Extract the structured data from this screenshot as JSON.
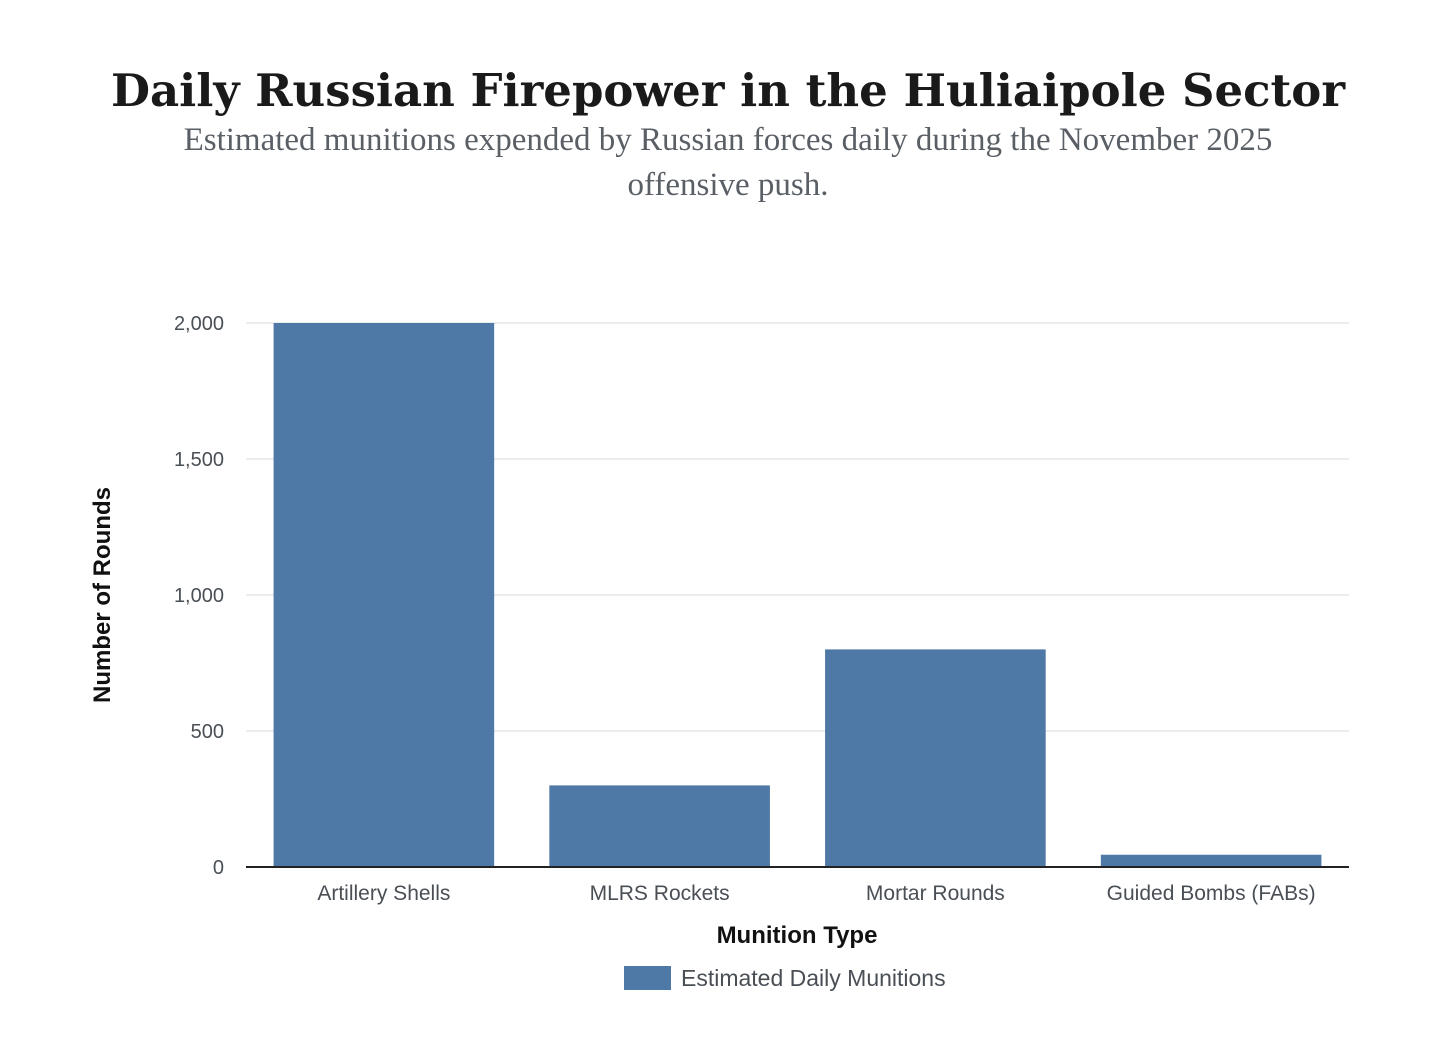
{
  "chart_data": {
    "type": "bar",
    "title": "Daily Russian Firepower in the Huliaipole Sector",
    "subtitle_lines": [
      "Estimated munitions expended by Russian forces daily during the November 2025",
      "offensive push."
    ],
    "categories": [
      "Artillery Shells",
      "MLRS Rockets",
      "Mortar Rounds",
      "Guided Bombs (FABs)"
    ],
    "series": [
      {
        "name": "Estimated Daily Munitions",
        "values": [
          2000,
          300,
          800,
          45
        ],
        "color": "#4e79a7"
      }
    ],
    "xlabel": "Munition Type",
    "ylabel": "Number of Rounds",
    "ylim": [
      0,
      2000
    ],
    "yticks": [
      0,
      500,
      1000,
      1500,
      2000
    ],
    "ytick_labels": [
      "0",
      "500",
      "1,000",
      "1,500",
      "2,000"
    ],
    "grid": true,
    "legend_position": "bottom-center"
  }
}
